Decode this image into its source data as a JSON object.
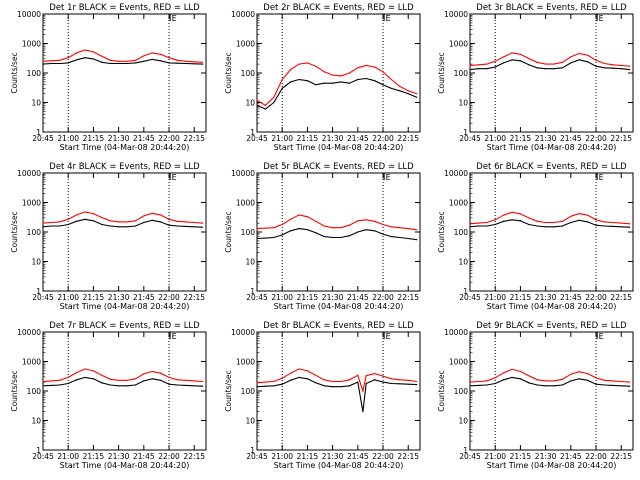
{
  "colors": {
    "events": "#000000",
    "lld": "#ff0000",
    "axes": "#000000",
    "background": "#ffffff"
  },
  "common": {
    "xlabel": "Start Time (04-Mar-08 20:44:20)",
    "ylabel": "Counts/sec",
    "xticks": [
      "20:45",
      "21:00",
      "21:15",
      "21:30",
      "21:45",
      "22:00",
      "22:15"
    ],
    "yticks": [
      "1",
      "10",
      "100",
      "1000",
      "10000"
    ],
    "marker": "E"
  },
  "chart_data": [
    {
      "type": "line",
      "title": "Det 1r BLACK = Events, RED = LLD",
      "xlabel": "Start Time (04-Mar-08 20:44:20)",
      "ylabel": "Counts/sec",
      "ylim": [
        1,
        10000
      ],
      "y_scale": "log",
      "vlines": [
        "21:00",
        "22:00"
      ],
      "ignore_small_values": true,
      "series": [
        {
          "name": "Events",
          "color": "#000000",
          "x": [
            "20:45",
            "20:50",
            "20:55",
            "21:00",
            "21:05",
            "21:10",
            "21:15",
            "21:20",
            "21:25",
            "21:30",
            "21:35",
            "21:40",
            "21:45",
            "21:50",
            "21:55",
            "22:00",
            "22:05",
            "22:10",
            "22:15",
            "22:20"
          ],
          "values": [
            200,
            210,
            210,
            220,
            280,
            330,
            300,
            230,
            210,
            210,
            210,
            220,
            250,
            290,
            260,
            220,
            215,
            210,
            205,
            200
          ]
        },
        {
          "name": "LLD",
          "color": "#ff0000",
          "x": [
            "20:45",
            "20:50",
            "20:55",
            "21:00",
            "21:05",
            "21:10",
            "21:15",
            "21:20",
            "21:25",
            "21:30",
            "21:35",
            "21:40",
            "21:45",
            "21:50",
            "21:55",
            "22:00",
            "22:05",
            "22:10",
            "22:15",
            "22:20"
          ],
          "values": [
            250,
            260,
            270,
            330,
            480,
            600,
            520,
            370,
            270,
            250,
            250,
            270,
            380,
            480,
            430,
            330,
            270,
            250,
            240,
            230
          ]
        }
      ]
    },
    {
      "type": "line",
      "title": "Det 2r BLACK = Events, RED = LLD",
      "xlabel": "Start Time (04-Mar-08 20:44:20)",
      "ylabel": "Counts/sec",
      "ylim": [
        1,
        10000
      ],
      "y_scale": "log",
      "vlines": [
        "21:00",
        "22:00"
      ],
      "series": [
        {
          "name": "Events",
          "color": "#000000",
          "x": [
            "20:45",
            "20:50",
            "20:55",
            "21:00",
            "21:05",
            "21:10",
            "21:15",
            "21:20",
            "21:25",
            "21:30",
            "21:35",
            "21:40",
            "21:45",
            "21:50",
            "21:55",
            "22:00",
            "22:05",
            "22:10",
            "22:15",
            "22:20"
          ],
          "values": [
            8,
            6,
            10,
            30,
            50,
            60,
            55,
            40,
            45,
            45,
            50,
            45,
            60,
            65,
            55,
            40,
            30,
            25,
            20,
            15
          ]
        },
        {
          "name": "LLD",
          "color": "#ff0000",
          "x": [
            "20:45",
            "20:50",
            "20:55",
            "21:00",
            "21:05",
            "21:10",
            "21:15",
            "21:20",
            "21:25",
            "21:30",
            "21:35",
            "21:40",
            "21:45",
            "21:50",
            "21:55",
            "22:00",
            "22:05",
            "22:10",
            "22:15",
            "22:20"
          ],
          "values": [
            12,
            8,
            15,
            60,
            130,
            200,
            220,
            170,
            110,
            85,
            80,
            100,
            150,
            180,
            160,
            110,
            60,
            35,
            25,
            20
          ]
        }
      ]
    },
    {
      "type": "line",
      "title": "Det 3r BLACK = Events, RED = LLD",
      "xlabel": "Start Time (04-Mar-08 20:44:20)",
      "ylabel": "Counts/sec",
      "ylim": [
        1,
        10000
      ],
      "y_scale": "log",
      "vlines": [
        "21:00",
        "22:00"
      ],
      "series": [
        {
          "name": "Events",
          "color": "#000000",
          "x": [
            "20:45",
            "20:50",
            "20:55",
            "21:00",
            "21:05",
            "21:10",
            "21:15",
            "21:20",
            "21:25",
            "21:30",
            "21:35",
            "21:40",
            "21:45",
            "21:50",
            "21:55",
            "22:00",
            "22:05",
            "22:10",
            "22:15",
            "22:20"
          ],
          "values": [
            130,
            140,
            140,
            160,
            220,
            280,
            260,
            190,
            150,
            140,
            140,
            150,
            220,
            280,
            240,
            170,
            150,
            145,
            140,
            130
          ]
        },
        {
          "name": "LLD",
          "color": "#ff0000",
          "x": [
            "20:45",
            "20:50",
            "20:55",
            "21:00",
            "21:05",
            "21:10",
            "21:15",
            "21:20",
            "21:25",
            "21:30",
            "21:35",
            "21:40",
            "21:45",
            "21:50",
            "21:55",
            "22:00",
            "22:05",
            "22:10",
            "22:15",
            "22:20"
          ],
          "values": [
            180,
            190,
            200,
            250,
            350,
            480,
            430,
            310,
            230,
            200,
            200,
            230,
            350,
            460,
            400,
            270,
            210,
            190,
            180,
            170
          ]
        }
      ]
    },
    {
      "type": "line",
      "title": "Det 4r BLACK = Events, RED = LLD",
      "xlabel": "Start Time (04-Mar-08 20:44:20)",
      "ylabel": "Counts/sec",
      "ylim": [
        1,
        10000
      ],
      "y_scale": "log",
      "vlines": [
        "21:00",
        "22:00"
      ],
      "series": [
        {
          "name": "Events",
          "color": "#000000",
          "x": [
            "20:45",
            "20:50",
            "20:55",
            "21:00",
            "21:05",
            "21:10",
            "21:15",
            "21:20",
            "21:25",
            "21:30",
            "21:35",
            "21:40",
            "21:45",
            "21:50",
            "21:55",
            "22:00",
            "22:05",
            "22:10",
            "22:15",
            "22:20"
          ],
          "values": [
            150,
            160,
            160,
            180,
            230,
            270,
            240,
            180,
            160,
            150,
            150,
            160,
            210,
            250,
            220,
            170,
            160,
            155,
            150,
            145
          ]
        },
        {
          "name": "LLD",
          "color": "#ff0000",
          "x": [
            "20:45",
            "20:50",
            "20:55",
            "21:00",
            "21:05",
            "21:10",
            "21:15",
            "21:20",
            "21:25",
            "21:30",
            "21:35",
            "21:40",
            "21:45",
            "21:50",
            "21:55",
            "22:00",
            "22:05",
            "22:10",
            "22:15",
            "22:20"
          ],
          "values": [
            200,
            210,
            220,
            270,
            380,
            480,
            420,
            310,
            240,
            220,
            220,
            240,
            350,
            430,
            380,
            270,
            230,
            220,
            210,
            200
          ]
        }
      ]
    },
    {
      "type": "line",
      "title": "Det 5r BLACK = Events, RED = LLD",
      "xlabel": "Start Time (04-Mar-08 20:44:20)",
      "ylabel": "Counts/sec",
      "ylim": [
        1,
        10000
      ],
      "y_scale": "log",
      "vlines": [
        "21:00",
        "22:00"
      ],
      "series": [
        {
          "name": "Events",
          "color": "#000000",
          "x": [
            "20:45",
            "20:50",
            "20:55",
            "21:00",
            "21:05",
            "21:10",
            "21:15",
            "21:20",
            "21:25",
            "21:30",
            "21:35",
            "21:40",
            "21:45",
            "21:50",
            "21:55",
            "22:00",
            "22:05",
            "22:10",
            "22:15",
            "22:20"
          ],
          "values": [
            60,
            62,
            65,
            80,
            110,
            130,
            120,
            95,
            70,
            65,
            65,
            75,
            100,
            120,
            110,
            85,
            70,
            65,
            60,
            55
          ]
        },
        {
          "name": "LLD",
          "color": "#ff0000",
          "x": [
            "20:45",
            "20:50",
            "20:55",
            "21:00",
            "21:05",
            "21:10",
            "21:15",
            "21:20",
            "21:25",
            "21:30",
            "21:35",
            "21:40",
            "21:45",
            "21:50",
            "21:55",
            "22:00",
            "22:05",
            "22:10",
            "22:15",
            "22:20"
          ],
          "values": [
            130,
            135,
            140,
            180,
            270,
            380,
            330,
            230,
            160,
            140,
            140,
            170,
            240,
            260,
            230,
            180,
            150,
            140,
            130,
            120
          ]
        }
      ]
    },
    {
      "type": "line",
      "title": "Det 6r BLACK = Events, RED = LLD",
      "xlabel": "Start Time (04-Mar-08 20:44:20)",
      "ylabel": "Counts/sec",
      "ylim": [
        1,
        10000
      ],
      "y_scale": "log",
      "vlines": [
        "21:00",
        "22:00"
      ],
      "series": [
        {
          "name": "Events",
          "color": "#000000",
          "x": [
            "20:45",
            "20:50",
            "20:55",
            "21:00",
            "21:05",
            "21:10",
            "21:15",
            "21:20",
            "21:25",
            "21:30",
            "21:35",
            "21:40",
            "21:45",
            "21:50",
            "21:55",
            "22:00",
            "22:05",
            "22:10",
            "22:15",
            "22:20"
          ],
          "values": [
            150,
            160,
            160,
            180,
            230,
            260,
            240,
            180,
            160,
            150,
            150,
            160,
            210,
            250,
            220,
            170,
            160,
            155,
            150,
            145
          ]
        },
        {
          "name": "LLD",
          "color": "#ff0000",
          "x": [
            "20:45",
            "20:50",
            "20:55",
            "21:00",
            "21:05",
            "21:10",
            "21:15",
            "21:20",
            "21:25",
            "21:30",
            "21:35",
            "21:40",
            "21:45",
            "21:50",
            "21:55",
            "22:00",
            "22:05",
            "22:10",
            "22:15",
            "22:20"
          ],
          "values": [
            190,
            200,
            210,
            260,
            370,
            470,
            410,
            300,
            230,
            210,
            210,
            230,
            340,
            420,
            370,
            260,
            220,
            210,
            200,
            190
          ]
        }
      ]
    },
    {
      "type": "line",
      "title": "Det 7r BLACK = Events, RED = LLD",
      "xlabel": "Start Time (04-Mar-08 20:44:20)",
      "ylabel": "Counts/sec",
      "ylim": [
        1,
        10000
      ],
      "y_scale": "log",
      "vlines": [
        "21:00",
        "22:00"
      ],
      "series": [
        {
          "name": "Events",
          "color": "#000000",
          "x": [
            "20:45",
            "20:50",
            "20:55",
            "21:00",
            "21:05",
            "21:10",
            "21:15",
            "21:20",
            "21:25",
            "21:30",
            "21:35",
            "21:40",
            "21:45",
            "21:50",
            "21:55",
            "22:00",
            "22:05",
            "22:10",
            "22:15",
            "22:20"
          ],
          "values": [
            150,
            155,
            160,
            180,
            240,
            290,
            260,
            190,
            160,
            150,
            150,
            160,
            220,
            260,
            230,
            170,
            160,
            155,
            150,
            145
          ]
        },
        {
          "name": "LLD",
          "color": "#ff0000",
          "x": [
            "20:45",
            "20:50",
            "20:55",
            "21:00",
            "21:05",
            "21:10",
            "21:15",
            "21:20",
            "21:25",
            "21:30",
            "21:35",
            "21:40",
            "21:45",
            "21:50",
            "21:55",
            "22:00",
            "22:05",
            "22:10",
            "22:15",
            "22:20"
          ],
          "values": [
            210,
            220,
            230,
            290,
            420,
            560,
            480,
            340,
            250,
            230,
            230,
            260,
            380,
            460,
            400,
            290,
            240,
            230,
            220,
            210
          ]
        }
      ]
    },
    {
      "type": "line",
      "title": "Det 8r BLACK = Events, RED = LLD",
      "xlabel": "Start Time (04-Mar-08 20:44:20)",
      "ylabel": "Counts/sec",
      "ylim": [
        1,
        10000
      ],
      "y_scale": "log",
      "vlines": [
        "21:00",
        "22:00"
      ],
      "series": [
        {
          "name": "Events",
          "color": "#000000",
          "x": [
            "20:45",
            "20:50",
            "20:55",
            "21:00",
            "21:05",
            "21:10",
            "21:15",
            "21:20",
            "21:25",
            "21:30",
            "21:35",
            "21:40",
            "21:45",
            "21:48",
            "21:50",
            "21:55",
            "22:00",
            "22:05",
            "22:10",
            "22:15",
            "22:20"
          ],
          "values": [
            140,
            145,
            150,
            170,
            230,
            290,
            260,
            190,
            150,
            140,
            140,
            150,
            200,
            20,
            180,
            240,
            200,
            180,
            175,
            170,
            165
          ]
        },
        {
          "name": "LLD",
          "color": "#ff0000",
          "x": [
            "20:45",
            "20:50",
            "20:55",
            "21:00",
            "21:05",
            "21:10",
            "21:15",
            "21:20",
            "21:25",
            "21:30",
            "21:35",
            "21:40",
            "21:45",
            "21:48",
            "21:50",
            "21:55",
            "22:00",
            "22:05",
            "22:10",
            "22:15",
            "22:20"
          ],
          "values": [
            190,
            200,
            210,
            270,
            400,
            560,
            480,
            340,
            240,
            210,
            210,
            240,
            340,
            100,
            330,
            390,
            320,
            260,
            240,
            230,
            210
          ]
        }
      ]
    },
    {
      "type": "line",
      "title": "Det 9r BLACK = Events, RED = LLD",
      "xlabel": "Start Time (04-Mar-08 20:44:20)",
      "ylabel": "Counts/sec",
      "ylim": [
        1,
        10000
      ],
      "y_scale": "log",
      "vlines": [
        "21:00",
        "22:00"
      ],
      "series": [
        {
          "name": "Events",
          "color": "#000000",
          "x": [
            "20:45",
            "20:50",
            "20:55",
            "21:00",
            "21:05",
            "21:10",
            "21:15",
            "21:20",
            "21:25",
            "21:30",
            "21:35",
            "21:40",
            "21:45",
            "21:50",
            "21:55",
            "22:00",
            "22:05",
            "22:10",
            "22:15",
            "22:20"
          ],
          "values": [
            150,
            155,
            160,
            180,
            240,
            290,
            260,
            190,
            160,
            150,
            150,
            160,
            220,
            260,
            230,
            170,
            160,
            155,
            150,
            145
          ]
        },
        {
          "name": "LLD",
          "color": "#ff0000",
          "x": [
            "20:45",
            "20:50",
            "20:55",
            "21:00",
            "21:05",
            "21:10",
            "21:15",
            "21:20",
            "21:25",
            "21:30",
            "21:35",
            "21:40",
            "21:45",
            "21:50",
            "21:55",
            "22:00",
            "22:05",
            "22:10",
            "22:15",
            "22:20"
          ],
          "values": [
            200,
            210,
            220,
            280,
            410,
            540,
            460,
            330,
            240,
            220,
            220,
            250,
            370,
            450,
            390,
            280,
            230,
            220,
            210,
            200
          ]
        }
      ]
    }
  ]
}
